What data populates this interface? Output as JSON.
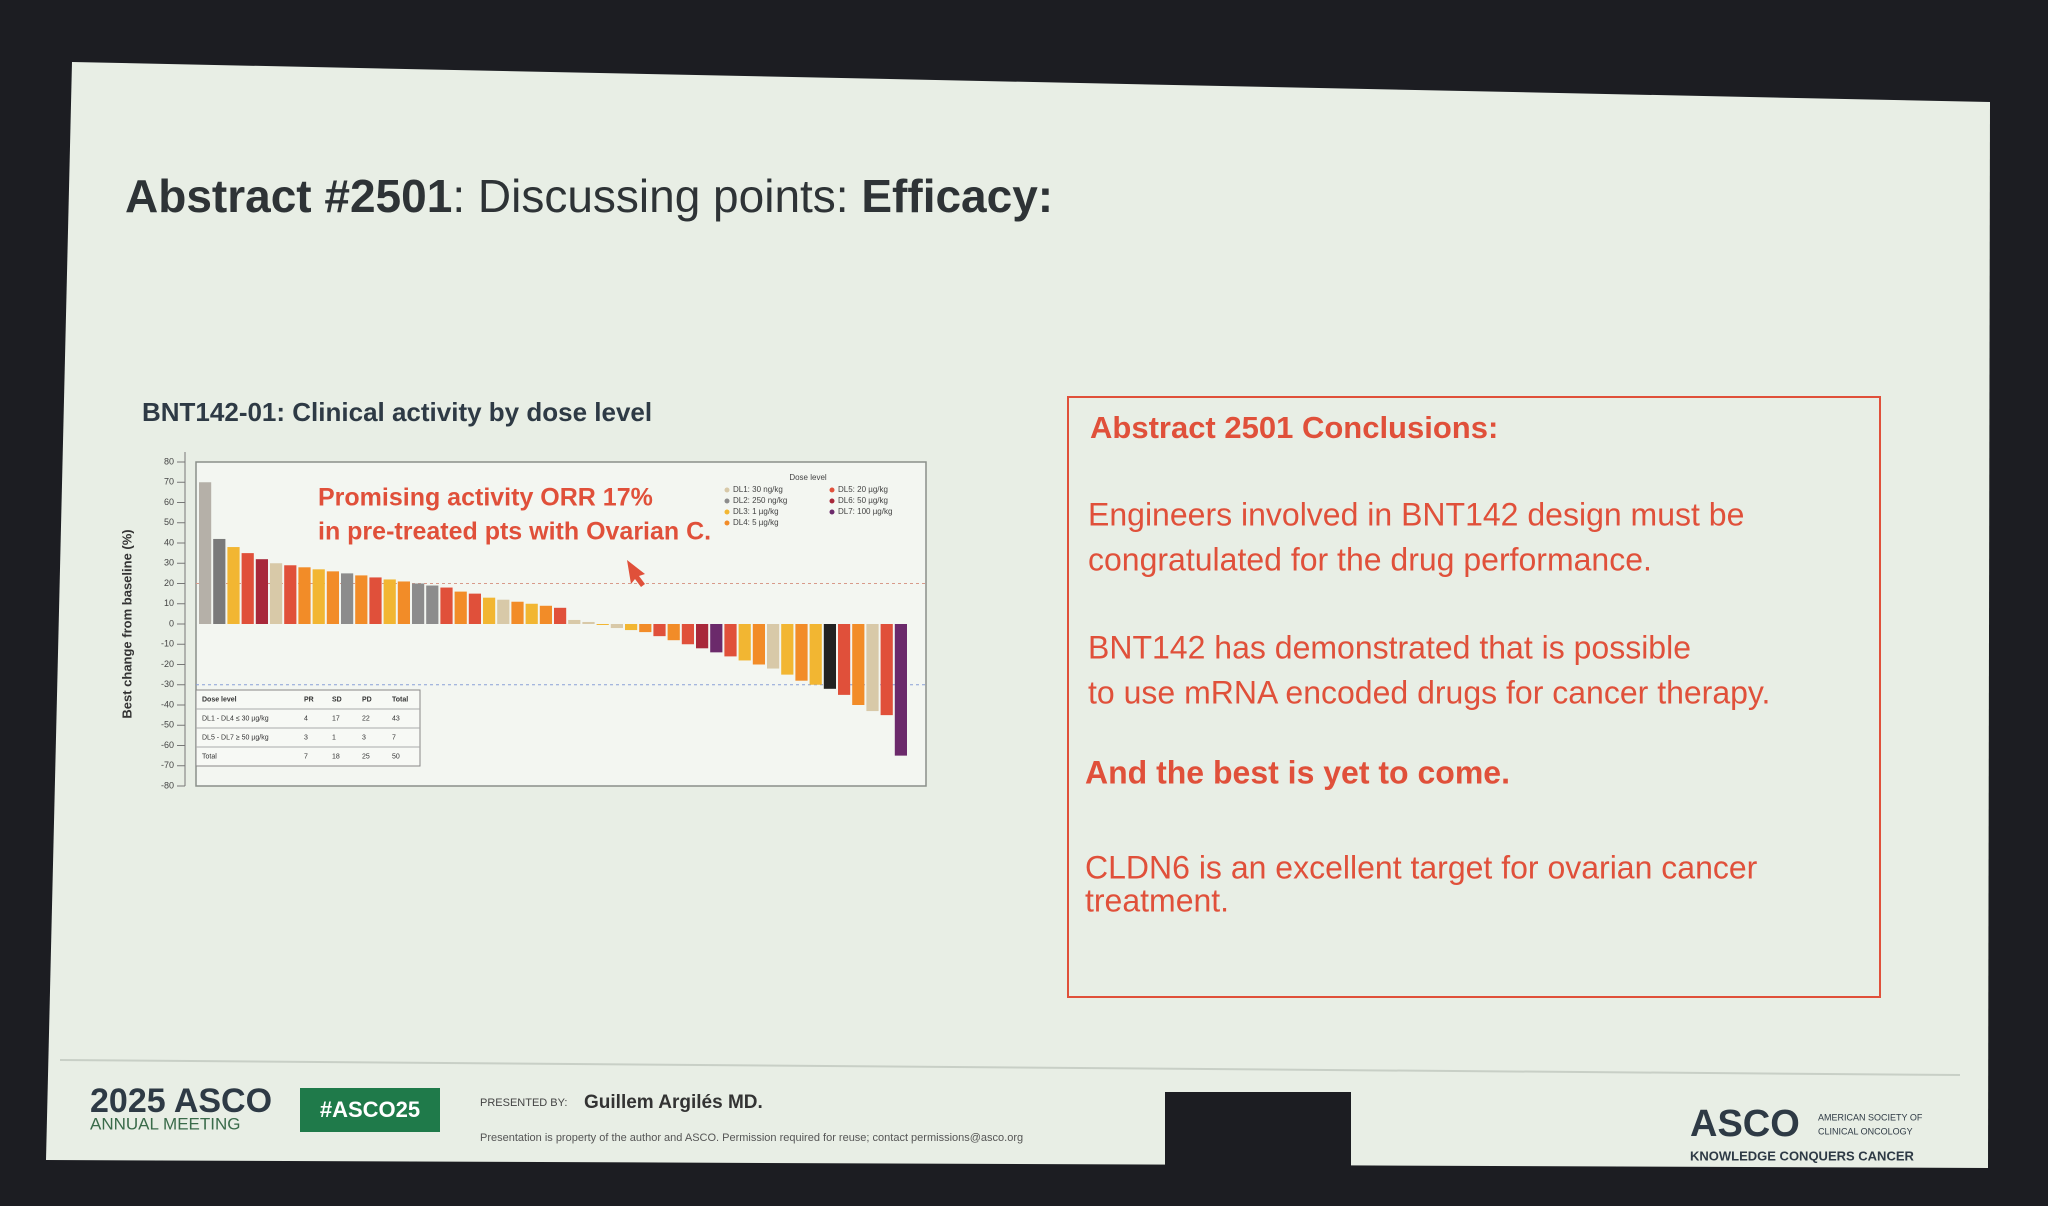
{
  "header": {
    "title_bold1": "Abstract #2501",
    "title_mid": ": Discussing points: ",
    "title_bold2": "Efficacy:"
  },
  "chart_data": {
    "type": "bar",
    "title": "BNT142-01: Clinical activity by dose level",
    "y_label": "Best change from baseline (%)",
    "annotation": [
      "Promising activity ORR 17%",
      "in pre-treated pts with Ovarian C."
    ],
    "values": [
      70,
      42,
      38,
      35,
      32,
      30,
      29,
      28,
      27,
      26,
      25,
      24,
      23,
      22,
      21,
      20,
      19,
      18,
      16,
      15,
      13,
      12,
      11,
      10,
      9,
      8,
      2,
      1,
      0,
      -2,
      -3,
      -4,
      -6,
      -8,
      -10,
      -12,
      -14,
      -16,
      -18,
      -20,
      -22,
      -25,
      -28,
      -30,
      -32,
      -35,
      -40,
      -43,
      -45,
      -65
    ],
    "colors": [
      "#b5b0a8",
      "#7a7a7a",
      "#f2b632",
      "#e0503a",
      "#a8283a",
      "#d8c9a8",
      "#e0503a",
      "#f28c28",
      "#f2b632",
      "#f28c28",
      "#8c8c8c",
      "#f28c28",
      "#e0503a",
      "#f2b632",
      "#f28c28",
      "#8c8c8c",
      "#8c8c8c",
      "#e0503a",
      "#f28c28",
      "#e0503a",
      "#f2b632",
      "#d8c9a8",
      "#f28c28",
      "#f2b632",
      "#f28c28",
      "#e0503a",
      "#d8c9a8",
      "#d8c9a8",
      "#f2b632",
      "#d8c9a8",
      "#f2b632",
      "#f28c28",
      "#e0503a",
      "#f28c28",
      "#e0503a",
      "#a8283a",
      "#6b2a6b",
      "#e0503a",
      "#f2b632",
      "#f28c28",
      "#d8c9a8",
      "#f2b632",
      "#f28c28",
      "#f2b632",
      "#222222",
      "#e0503a",
      "#f28c28",
      "#d8c9a8",
      "#e0503a",
      "#6b2a6b"
    ],
    "ylim": [
      -80,
      80
    ],
    "yticks": [
      -80,
      -70,
      -60,
      -50,
      -40,
      -30,
      -20,
      -10,
      0,
      10,
      20,
      30,
      40,
      50,
      60,
      70,
      80
    ],
    "reference_lines": [
      20,
      -30
    ],
    "legend_title": "Dose level",
    "legend": [
      {
        "name": "DL1: 30 ng/kg",
        "color": "#d8c9a8"
      },
      {
        "name": "DL2: 250 ng/kg",
        "color": "#8c8c8c"
      },
      {
        "name": "DL3: 1 µg/kg",
        "color": "#f2b632"
      },
      {
        "name": "DL4: 5 µg/kg",
        "color": "#f28c28"
      },
      {
        "name": "DL5: 20 µg/kg",
        "color": "#e0503a"
      },
      {
        "name": "DL6: 50 µg/kg",
        "color": "#a8283a"
      },
      {
        "name": "DL7: 100 µg/kg",
        "color": "#6b2a6b"
      }
    ],
    "table": {
      "columns": [
        "Dose level",
        "PR",
        "SD",
        "PD",
        "Total"
      ],
      "rows": [
        [
          "DL1 - DL4 ≤ 30 µg/kg",
          "4",
          "17",
          "22",
          "43"
        ],
        [
          "DL5 - DL7 ≥ 50 µg/kg",
          "3",
          "1",
          "3",
          "7"
        ],
        [
          "Total",
          "7",
          "18",
          "25",
          "50"
        ]
      ]
    }
  },
  "conclusions": {
    "heading": "Abstract 2501 Conclusions:",
    "p1": [
      "Engineers involved in BNT142 design must be",
      "congratulated for the drug performance."
    ],
    "p2": [
      "BNT142 has demonstrated that is possible",
      "to use mRNA encoded drugs for cancer therapy."
    ],
    "p3": "And the best is yet to come.",
    "p4": [
      "CLDN6 is an excellent target for ovarian cancer",
      "treatment."
    ]
  },
  "footer": {
    "year_brand": "2025 ASCO",
    "meeting": "ANNUAL MEETING",
    "hashtag": "#ASCO25",
    "presented_by": "PRESENTED BY:",
    "presenter": "Guillem Argilés MD.",
    "notice": "Presentation is property of the author and ASCO. Permission required for reuse; contact permissions@asco.org",
    "logo": "ASCO",
    "society": [
      "AMERICAN SOCIETY OF",
      "CLINICAL ONCOLOGY"
    ],
    "tagline": "KNOWLEDGE CONQUERS CANCER"
  }
}
